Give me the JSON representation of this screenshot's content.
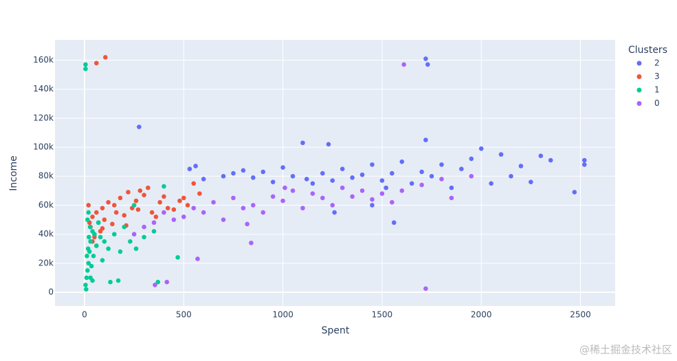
{
  "chart_data": {
    "type": "scatter",
    "x_label": "Spent",
    "y_label": "Income",
    "legend_title": "Clusters",
    "legend_position": "right",
    "grid": true,
    "watermark": "@稀土掘金技术社区",
    "xlim": [
      -149,
      2675
    ],
    "xticks": [
      0,
      500,
      1000,
      1500,
      2000,
      2500
    ],
    "ylim": [
      -9500,
      174000
    ],
    "yticks": [
      0,
      {
        "value": 20000,
        "label": "20k"
      },
      {
        "value": 40000,
        "label": "40k"
      },
      {
        "value": 60000,
        "label": "60k"
      },
      {
        "value": 80000,
        "label": "80k"
      },
      {
        "value": 100000,
        "label": "100k"
      },
      {
        "value": 120000,
        "label": "120k"
      },
      {
        "value": 140000,
        "label": "140k"
      },
      {
        "value": 160000,
        "label": "160k"
      }
    ],
    "series": [
      {
        "name": "2",
        "color": "#636efa",
        "x": [
          1720,
          1730,
          275,
          1720,
          530,
          560,
          600,
          700,
          750,
          800,
          850,
          900,
          950,
          1000,
          1050,
          1100,
          1120,
          1150,
          1200,
          1250,
          1300,
          1350,
          1400,
          1450,
          1500,
          1520,
          1550,
          1600,
          1650,
          1700,
          1750,
          1800,
          1850,
          1900,
          1950,
          2000,
          2050,
          2100,
          2150,
          2200,
          2250,
          2300,
          2350,
          2470,
          2520,
          2520,
          1450,
          1230,
          1260,
          1560
        ],
        "values": [
          161000,
          157000,
          114000,
          105000,
          85000,
          87000,
          78000,
          80000,
          82000,
          84000,
          79000,
          83000,
          76000,
          86000,
          80000,
          103000,
          78000,
          75000,
          82000,
          77000,
          85000,
          79000,
          81000,
          88000,
          77000,
          72000,
          82000,
          90000,
          75000,
          83000,
          80000,
          88000,
          72000,
          85000,
          92000,
          99000,
          75000,
          95000,
          80000,
          87000,
          76000,
          94000,
          91000,
          69000,
          91000,
          88000,
          60000,
          102000,
          55000,
          48000
        ]
      },
      {
        "name": "3",
        "color": "#ef553b",
        "x": [
          105,
          60,
          20,
          30,
          40,
          50,
          60,
          70,
          80,
          90,
          100,
          120,
          140,
          160,
          180,
          200,
          220,
          240,
          260,
          280,
          300,
          320,
          340,
          360,
          380,
          400,
          420,
          450,
          480,
          500,
          520,
          550,
          580,
          40,
          60,
          25,
          90,
          150,
          210,
          270
        ],
        "values": [
          162000,
          158000,
          60000,
          45000,
          52000,
          38000,
          55000,
          48000,
          42000,
          58000,
          50000,
          62000,
          47000,
          55000,
          65000,
          53000,
          69000,
          58000,
          63000,
          70000,
          67000,
          72000,
          55000,
          52000,
          62000,
          66000,
          58000,
          57000,
          63000,
          65000,
          60000,
          75000,
          68000,
          35000,
          32000,
          48000,
          44000,
          60000,
          46000,
          57000
        ]
      },
      {
        "name": "1",
        "color": "#00cc96",
        "x": [
          5,
          5,
          5,
          8,
          10,
          12,
          15,
          18,
          20,
          22,
          25,
          28,
          30,
          35,
          40,
          45,
          50,
          60,
          70,
          80,
          90,
          100,
          120,
          150,
          180,
          200,
          230,
          260,
          300,
          350,
          370,
          400,
          470,
          30,
          40,
          15,
          20,
          130,
          170,
          250
        ],
        "values": [
          157000,
          154000,
          5000,
          2000,
          10000,
          25000,
          15000,
          30000,
          20000,
          38000,
          28000,
          45000,
          35000,
          18000,
          42000,
          25000,
          40000,
          32000,
          48000,
          38000,
          22000,
          35000,
          30000,
          40000,
          28000,
          45000,
          35000,
          30000,
          38000,
          42000,
          7000,
          73000,
          24000,
          10000,
          8000,
          50000,
          55000,
          7000,
          8000,
          60000
        ]
      },
      {
        "name": "0",
        "color": "#ab63fa",
        "x": [
          1610,
          1720,
          415,
          355,
          840,
          570,
          250,
          300,
          350,
          400,
          450,
          500,
          550,
          600,
          650,
          700,
          750,
          800,
          850,
          900,
          950,
          1000,
          1050,
          1100,
          1150,
          1200,
          1250,
          1300,
          1350,
          1400,
          1450,
          1500,
          1550,
          1600,
          1700,
          1800,
          1850,
          1950,
          820,
          1010
        ],
        "values": [
          157000,
          2500,
          7000,
          5000,
          34000,
          23000,
          40000,
          45000,
          48000,
          55000,
          50000,
          52000,
          58000,
          55000,
          62000,
          50000,
          65000,
          58000,
          60000,
          55000,
          66000,
          63000,
          70000,
          58000,
          68000,
          65000,
          60000,
          72000,
          66000,
          70000,
          64000,
          68000,
          62000,
          70000,
          74000,
          78000,
          65000,
          80000,
          47000,
          72000
        ]
      }
    ]
  }
}
